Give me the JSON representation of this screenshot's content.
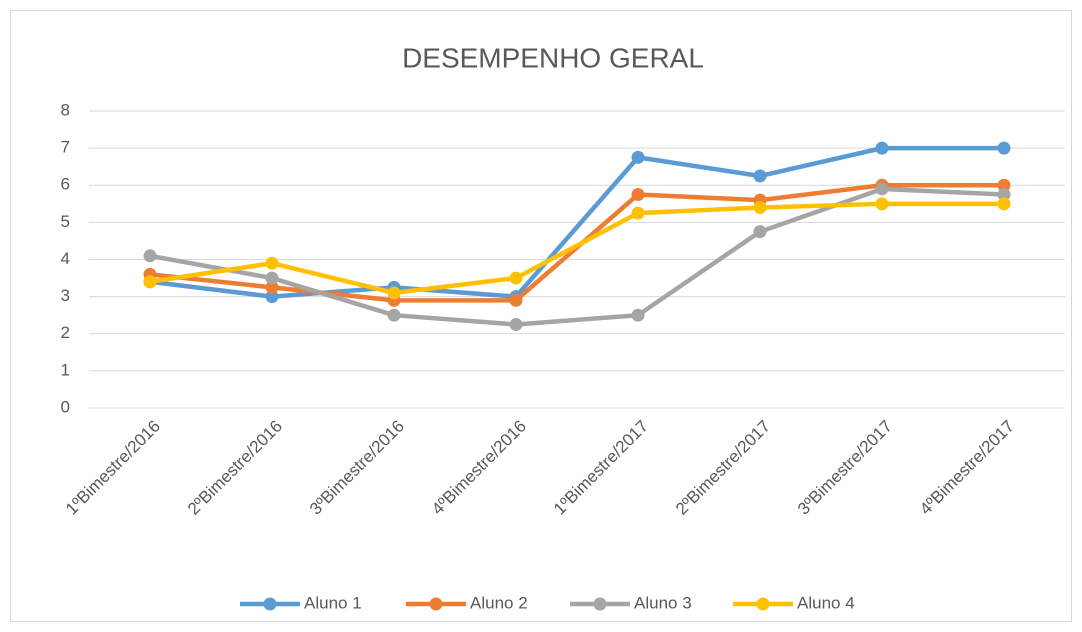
{
  "chart_data": {
    "type": "line",
    "title": "DESEMPENHO GERAL",
    "categories": [
      "1ºBimestre/2016",
      "2ºBimestre/2016",
      "3ºBimestre/2016",
      "4ºBimestre/2016",
      "1ºBimestre/2017",
      "2ºBimestre/2017",
      "3ºBimestre/2017",
      "4ºBimestre/2017"
    ],
    "series": [
      {
        "name": "Aluno 1",
        "color": "#5b9bd5",
        "values": [
          3.4,
          3.0,
          3.25,
          3.0,
          6.75,
          6.25,
          7,
          7
        ]
      },
      {
        "name": "Aluno 2",
        "color": "#ed7d31",
        "values": [
          3.6,
          3.25,
          2.9,
          2.9,
          5.75,
          5.6,
          6,
          6
        ]
      },
      {
        "name": "Aluno 3",
        "color": "#a5a5a5",
        "values": [
          4.1,
          3.5,
          2.5,
          2.25,
          2.5,
          4.75,
          5.9,
          5.75
        ]
      },
      {
        "name": "Aluno 4",
        "color": "#ffc000",
        "values": [
          3.4,
          3.9,
          3.1,
          3.5,
          5.25,
          5.4,
          5.5,
          5.5
        ]
      }
    ],
    "ylim": [
      0,
      8
    ],
    "yticks": [
      0,
      1,
      2,
      3,
      4,
      5,
      6,
      7,
      8
    ],
    "grid": true,
    "legend": "bottom"
  }
}
